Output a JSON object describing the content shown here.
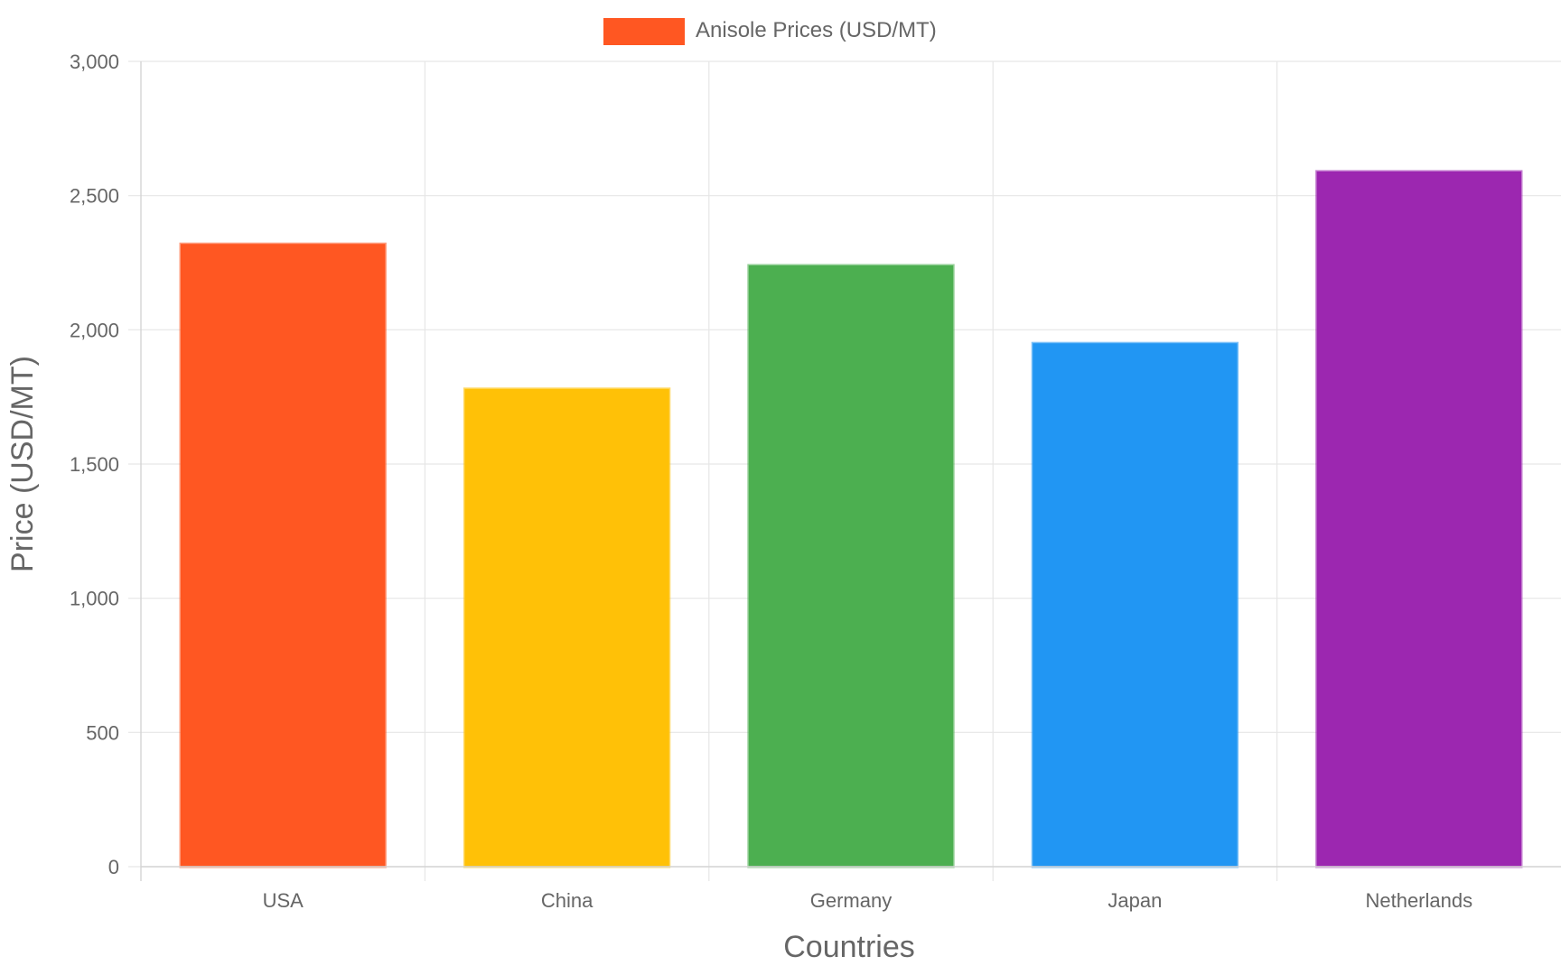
{
  "chart_data": {
    "type": "bar",
    "categories": [
      "USA",
      "China",
      "Germany",
      "Japan",
      "Netherlands"
    ],
    "series": [
      {
        "name": "Anisole Prices (USD/MT)",
        "values": [
          2320,
          1780,
          2240,
          1950,
          2590
        ]
      }
    ],
    "bar_colors": [
      "#FF5722",
      "#FFC107",
      "#4CAF50",
      "#2196F3",
      "#9C27B0"
    ],
    "legend_color": "#FF5722",
    "xlabel": "Countries",
    "ylabel": "Price (USD/MT)",
    "ylim": [
      0,
      3000
    ],
    "yticks": [
      0,
      500,
      1000,
      1500,
      2000,
      2500,
      3000
    ],
    "ytick_labels": [
      "0",
      "500",
      "1,000",
      "1,500",
      "2,000",
      "2,500",
      "3,000"
    ],
    "grid": true,
    "legend_position": "top-center"
  }
}
